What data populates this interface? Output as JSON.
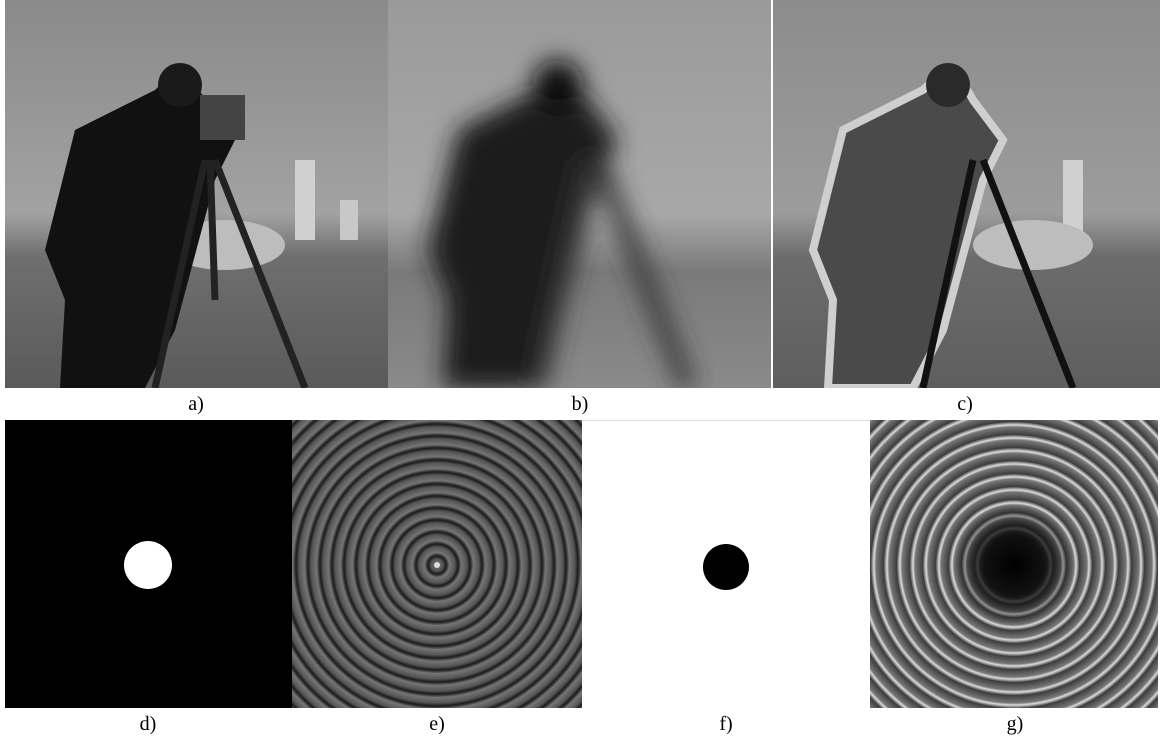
{
  "panels": [
    {
      "label": "a)"
    },
    {
      "label": "b)"
    },
    {
      "label": "c)"
    },
    {
      "label": "d)"
    },
    {
      "label": "e)"
    },
    {
      "label": "f)"
    },
    {
      "label": "g)"
    }
  ]
}
